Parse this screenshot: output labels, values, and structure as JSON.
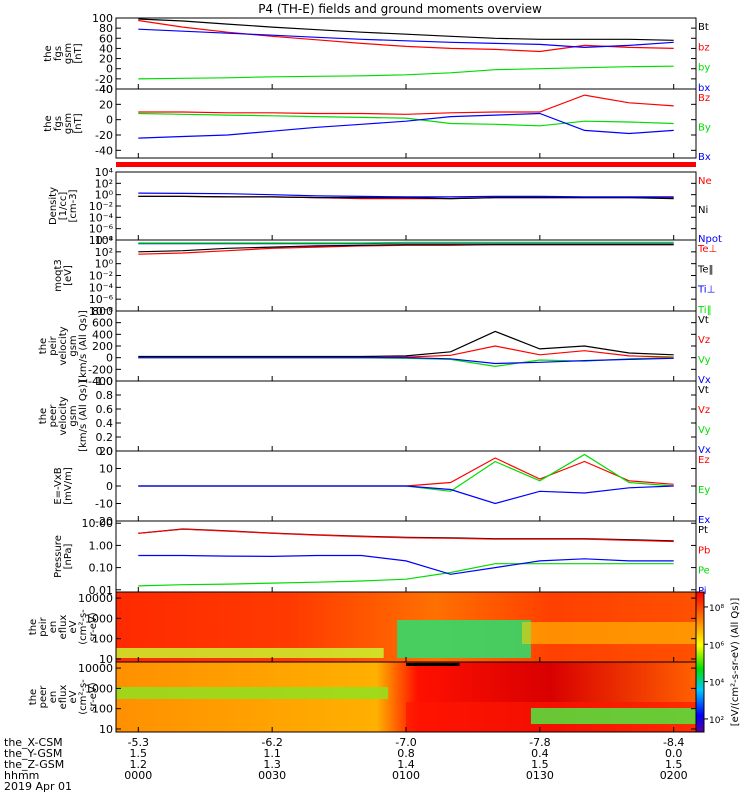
{
  "title": "P4 (TH-E) fields and ground moments overview",
  "colors": {
    "black": "#000000",
    "red": "#ff0000",
    "green": "#00dd00",
    "blue": "#0000ff",
    "frame": "#000000"
  },
  "time_axis": {
    "ticks": [
      "0000",
      "0030",
      "0100",
      "0130",
      "0200"
    ],
    "tick_minutes": [
      0,
      30,
      60,
      90,
      120
    ],
    "xrange_minutes": [
      -5,
      125
    ],
    "rows": [
      {
        "label": "the_X-CSM",
        "values": [
          "-5.3",
          "-6.2",
          "-7.0",
          "-7.8",
          "-8.4"
        ]
      },
      {
        "label": "the_Y-GSM",
        "values": [
          "1.5",
          "1.1",
          "0.8",
          "0.4",
          "0.0"
        ]
      },
      {
        "label": "the_Z-GSM",
        "values": [
          "1.2",
          "1.3",
          "1.4",
          "1.5",
          "1.5"
        ]
      },
      {
        "label": "hhmm",
        "values": [
          "0000",
          "0030",
          "0100",
          "0130",
          "0200"
        ]
      }
    ],
    "date": "2019 Apr 01"
  },
  "panels": [
    {
      "id": "fgs_gsm_mag",
      "ylabel": [
        "the",
        "fgs",
        "gsm",
        "[nT]"
      ],
      "ticks": [
        "100",
        "80",
        "60",
        "40",
        "20",
        "0",
        "-20",
        "-40"
      ],
      "tick_values": [
        100,
        80,
        60,
        40,
        20,
        0,
        -20,
        -40
      ],
      "ylim": [
        -40,
        100
      ],
      "scale": "linear",
      "legend": [
        {
          "label": "Bt",
          "color": "#000000"
        },
        {
          "label": "bz",
          "color": "#ff0000"
        },
        {
          "label": "by",
          "color": "#00dd00"
        },
        {
          "label": "bx",
          "color": "#0000ff"
        }
      ]
    },
    {
      "id": "fgs_gsm",
      "ylabel": [
        "the",
        "fgs",
        "gsm",
        "[nT]"
      ],
      "ticks": [
        "40",
        "20",
        "0",
        "-20",
        "-40"
      ],
      "tick_values": [
        40,
        20,
        0,
        -20,
        -40
      ],
      "ylim": [
        -50,
        40
      ],
      "scale": "linear",
      "legend": [
        {
          "label": "Bz",
          "color": "#ff0000"
        },
        {
          "label": "By",
          "color": "#00dd00"
        },
        {
          "label": "Bx",
          "color": "#0000ff"
        }
      ]
    },
    {
      "id": "density",
      "ylabel": [
        "Density",
        "[1/cc]",
        "[cm-3]"
      ],
      "ticks": [
        "10⁴",
        "10²",
        "10⁰",
        "10⁻²",
        "10⁻⁴",
        "10⁻⁶",
        "10⁻⁸"
      ],
      "tick_values": [
        4,
        2,
        0,
        -2,
        -4,
        -6,
        -8
      ],
      "ylim": [
        -8,
        4
      ],
      "scale": "log",
      "legend": [
        {
          "label": "Ne",
          "color": "#ff0000"
        },
        {
          "label": "Ni",
          "color": "#000000"
        },
        {
          "label": "Npot",
          "color": "#0000ff"
        }
      ]
    },
    {
      "id": "temperature",
      "ylabel": [
        "moqt3",
        "[eV]"
      ],
      "ticks": [
        "10⁴",
        "10²",
        "10⁰",
        "10⁻²",
        "10⁻⁴",
        "10⁻⁶",
        "10⁻⁸"
      ],
      "tick_values": [
        4,
        2,
        0,
        -2,
        -4,
        -6,
        -8
      ],
      "ylim": [
        -8,
        4
      ],
      "scale": "log",
      "legend": [
        {
          "label": "Te⊥",
          "color": "#ff0000"
        },
        {
          "label": "Te‖",
          "color": "#000000"
        },
        {
          "label": "Ti⊥",
          "color": "#0000ff"
        },
        {
          "label": "Ti‖",
          "color": "#00dd00"
        }
      ]
    },
    {
      "id": "peir_velocity",
      "ylabel": [
        "the",
        "peir",
        "velocity",
        "gsm",
        "[km/s (All Qs)]"
      ],
      "ticks": [
        "800",
        "600",
        "400",
        "200",
        "0",
        "-200",
        "-400"
      ],
      "tick_values": [
        800,
        600,
        400,
        200,
        0,
        -200,
        -400
      ],
      "ylim": [
        -400,
        800
      ],
      "scale": "linear",
      "legend": [
        {
          "label": "Vt",
          "color": "#000000"
        },
        {
          "label": "Vz",
          "color": "#ff0000"
        },
        {
          "label": "Vy",
          "color": "#00dd00"
        },
        {
          "label": "Vx",
          "color": "#0000ff"
        }
      ]
    },
    {
      "id": "peer_velocity",
      "ylabel": [
        "the",
        "peer",
        "velocity",
        "gsm",
        "[km/s (All Qs)]"
      ],
      "ticks": [
        "1.0",
        "0.8",
        "0.6",
        "0.4",
        "0.2",
        "0.0"
      ],
      "tick_values": [
        1,
        0.8,
        0.6,
        0.4,
        0.2,
        0
      ],
      "ylim": [
        0,
        1
      ],
      "scale": "linear",
      "legend": [
        {
          "label": "Vt",
          "color": "#000000"
        },
        {
          "label": "Vz",
          "color": "#ff0000"
        },
        {
          "label": "Vy",
          "color": "#00dd00"
        },
        {
          "label": "Vx",
          "color": "#0000ff"
        }
      ]
    },
    {
      "id": "efield",
      "ylabel": [
        "E=-VxB",
        "[mV/m]"
      ],
      "ticks": [
        "20",
        "10",
        "0",
        "-10",
        "-20"
      ],
      "tick_values": [
        20,
        10,
        0,
        -10,
        -20
      ],
      "ylim": [
        -20,
        20
      ],
      "scale": "linear",
      "legend": [
        {
          "label": "Ez",
          "color": "#ff0000"
        },
        {
          "label": "Ey",
          "color": "#00dd00"
        },
        {
          "label": "Ex",
          "color": "#0000ff"
        }
      ]
    },
    {
      "id": "pressure",
      "ylabel": [
        "Pressure",
        "[nPa]"
      ],
      "ticks": [
        "10.00",
        "1.00",
        "0.10",
        "0.01"
      ],
      "tick_values": [
        1,
        0,
        -1,
        -2
      ],
      "ylim": [
        -2.1,
        1.1
      ],
      "scale": "log",
      "legend": [
        {
          "label": "Pt",
          "color": "#000000"
        },
        {
          "label": "Pb",
          "color": "#ff0000"
        },
        {
          "label": "Pe",
          "color": "#00dd00"
        },
        {
          "label": "Pi",
          "color": "#0000ff"
        }
      ]
    },
    {
      "id": "peir_eflux",
      "ylabel": [
        "the",
        "peir",
        "en",
        "eflux",
        "eV",
        "(cm²-s-",
        "sr-eV)"
      ],
      "ticks": [
        "10000",
        "1000",
        "100",
        "10"
      ],
      "tick_values": [
        4,
        3,
        2,
        1
      ],
      "ylim": [
        0.85,
        4.3
      ],
      "scale": "log"
    },
    {
      "id": "peer_eflux",
      "ylabel": [
        "the",
        "peer",
        "en",
        "eflux",
        "eV",
        "(cm²-s-",
        "sr-eV)"
      ],
      "ticks": [
        "10000",
        "1000",
        "100",
        "10"
      ],
      "tick_values": [
        4,
        3,
        2,
        1
      ],
      "ylim": [
        0.85,
        4.3
      ],
      "scale": "log"
    }
  ],
  "colorbar": {
    "label": "[eV/(cm²-s-sr-eV) (All Qs)]",
    "ticks": [
      "10⁸",
      "10⁶",
      "10⁴",
      "10²"
    ],
    "tick_values": [
      8,
      6,
      4,
      2
    ],
    "range": [
      1.3,
      8.8
    ]
  },
  "chart_data": {
    "type": "line",
    "title": "P4 (TH-E) fields and ground moments overview",
    "x_unit": "minutes after 2019-04-01 00:00 (hhmm)",
    "x": [
      0,
      10,
      20,
      30,
      40,
      50,
      60,
      70,
      80,
      90,
      100,
      110,
      120
    ],
    "series": [
      {
        "panel": "fgs_gsm_mag",
        "name": "Bt",
        "values": [
          98,
          94,
          88,
          82,
          77,
          72,
          68,
          64,
          60,
          58,
          58,
          58,
          56
        ]
      },
      {
        "panel": "fgs_gsm_mag",
        "name": "bz",
        "values": [
          95,
          82,
          72,
          64,
          57,
          50,
          44,
          40,
          38,
          34,
          46,
          42,
          40
        ]
      },
      {
        "panel": "fgs_gsm_mag",
        "name": "by",
        "values": [
          -20,
          -19,
          -18,
          -16,
          -15,
          -14,
          -12,
          -8,
          -2,
          0,
          2,
          4,
          5
        ]
      },
      {
        "panel": "fgs_gsm_mag",
        "name": "bx",
        "values": [
          78,
          74,
          70,
          66,
          62,
          58,
          55,
          52,
          50,
          48,
          42,
          46,
          52
        ]
      },
      {
        "panel": "fgs_gsm",
        "name": "Bz",
        "values": [
          10,
          10,
          9,
          9,
          8,
          8,
          7,
          9,
          10,
          10,
          32,
          22,
          18
        ]
      },
      {
        "panel": "fgs_gsm",
        "name": "By",
        "values": [
          8,
          7,
          6,
          5,
          4,
          3,
          2,
          -5,
          -6,
          -8,
          -2,
          -3,
          -5
        ]
      },
      {
        "panel": "fgs_gsm",
        "name": "Bx",
        "values": [
          -24,
          -22,
          -20,
          -15,
          -10,
          -6,
          -2,
          4,
          6,
          8,
          -14,
          -18,
          -14
        ]
      },
      {
        "panel": "density",
        "name": "Ne",
        "values": [
          0.5,
          0.5,
          0.4,
          0.4,
          0.3,
          0.2,
          0.2,
          0.2,
          0.3,
          0.3,
          0.3,
          0.3,
          0.3
        ]
      },
      {
        "panel": "density",
        "name": "Ni",
        "values": [
          0.5,
          0.5,
          0.4,
          0.4,
          0.3,
          0.3,
          0.3,
          0.2,
          0.3,
          0.3,
          0.3,
          0.3,
          0.2
        ]
      },
      {
        "panel": "density",
        "name": "Npot",
        "values": [
          1.9,
          1.7,
          1.5,
          1.0,
          0.6,
          0.5,
          0.4,
          0.4,
          0.5,
          0.5,
          0.4,
          0.4,
          0.4
        ]
      },
      {
        "panel": "temperature",
        "name": "Te⊥",
        "values": [
          1.6,
          1.8,
          2.2,
          2.6,
          2.8,
          3.0,
          3.1,
          3.1,
          3.2,
          3.2,
          3.2,
          3.2,
          3.2
        ]
      },
      {
        "panel": "temperature",
        "name": "Te‖",
        "values": [
          2.0,
          2.2,
          2.6,
          2.8,
          3.0,
          3.1,
          3.2,
          3.2,
          3.2,
          3.2,
          3.2,
          3.2,
          3.2
        ]
      },
      {
        "panel": "temperature",
        "name": "Ti⊥",
        "values": [
          3.4,
          3.4,
          3.4,
          3.4,
          3.4,
          3.4,
          3.5,
          3.5,
          3.5,
          3.5,
          3.5,
          3.5,
          3.5
        ]
      },
      {
        "panel": "temperature",
        "name": "Ti‖",
        "values": [
          3.5,
          3.5,
          3.5,
          3.5,
          3.5,
          3.5,
          3.6,
          3.6,
          3.6,
          3.6,
          3.6,
          3.6,
          3.6
        ]
      },
      {
        "panel": "peir_velocity",
        "name": "Vt",
        "values": [
          20,
          20,
          20,
          20,
          20,
          20,
          30,
          100,
          450,
          150,
          200,
          80,
          50
        ]
      },
      {
        "panel": "peir_velocity",
        "name": "Vz",
        "values": [
          0,
          0,
          0,
          0,
          0,
          0,
          10,
          40,
          200,
          50,
          120,
          30,
          10
        ]
      },
      {
        "panel": "peir_velocity",
        "name": "Vy",
        "values": [
          0,
          0,
          0,
          0,
          0,
          0,
          -10,
          -30,
          -150,
          -40,
          -60,
          -20,
          0
        ]
      },
      {
        "panel": "peir_velocity",
        "name": "Vx",
        "values": [
          0,
          0,
          0,
          0,
          0,
          0,
          0,
          -20,
          -100,
          -80,
          -50,
          -30,
          -10
        ]
      },
      {
        "panel": "efield",
        "name": "Ez",
        "values": [
          0,
          0,
          0,
          0,
          0,
          0,
          0,
          2,
          16,
          4,
          14,
          3,
          1
        ]
      },
      {
        "panel": "efield",
        "name": "Ey",
        "values": [
          0,
          0,
          0,
          0,
          0,
          0,
          0,
          -3,
          14,
          3,
          18,
          2,
          0
        ]
      },
      {
        "panel": "efield",
        "name": "Ex",
        "values": [
          0,
          0,
          0,
          0,
          0,
          0,
          0,
          -2,
          -10,
          -3,
          -4,
          -1,
          0
        ]
      },
      {
        "panel": "pressure",
        "name": "Pt",
        "values": [
          3.5,
          5.5,
          4.5,
          3.6,
          3.0,
          2.6,
          2.3,
          2.2,
          2.0,
          2.0,
          2.0,
          1.8,
          1.6
        ]
      },
      {
        "panel": "pressure",
        "name": "Pb",
        "values": [
          3.5,
          5.4,
          4.4,
          3.5,
          2.9,
          2.5,
          2.2,
          2.1,
          1.9,
          1.9,
          1.9,
          1.7,
          1.5
        ]
      },
      {
        "panel": "pressure",
        "name": "Pe",
        "values": [
          0.015,
          0.017,
          0.018,
          0.02,
          0.022,
          0.025,
          0.03,
          0.06,
          0.15,
          0.15,
          0.15,
          0.15,
          0.15
        ]
      },
      {
        "panel": "pressure",
        "name": "Pi",
        "values": [
          0.35,
          0.35,
          0.33,
          0.32,
          0.35,
          0.35,
          0.2,
          0.05,
          0.1,
          0.2,
          0.25,
          0.2,
          0.2
        ]
      }
    ],
    "spectrograms": [
      {
        "panel": "peir_eflux",
        "energy_range_eV": [
          10,
          20000
        ],
        "note_colors": "red/orange broad flux; green-cyan low energy enhancement 0100-0125"
      },
      {
        "panel": "peer_eflux",
        "energy_range_eV": [
          10,
          20000
        ],
        "note_colors": "yellow/red flux; strong red band after 0100"
      }
    ]
  }
}
